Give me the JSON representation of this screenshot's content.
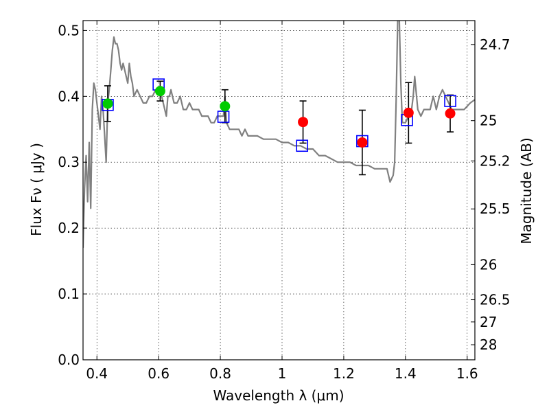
{
  "chart_data": {
    "type": "scatter",
    "xlabel": "Wavelength  λ (μm)",
    "ylabel": "Flux  Fν  ( μJy )",
    "ylabel_right": "Magnitude (AB)",
    "xlim": [
      0.355,
      1.625
    ],
    "ylim": [
      0.0,
      0.515
    ],
    "xticks": [
      0.4,
      0.6,
      0.8,
      1.0,
      1.2,
      1.4,
      1.6
    ],
    "xtick_labels": [
      "0.4",
      "0.6",
      "0.8",
      "1",
      "1.2",
      "1.4",
      "1.6"
    ],
    "yticks": [
      0.0,
      0.1,
      0.2,
      0.3,
      0.4,
      0.5
    ],
    "ytick_labels": [
      "0.0",
      "0.1",
      "0.2",
      "0.3",
      "0.4",
      "0.5"
    ],
    "right_ticks": [
      {
        "label": "24.7",
        "flux": 0.4787
      },
      {
        "label": "25",
        "flux": 0.3631
      },
      {
        "label": "25.2",
        "flux": 0.302
      },
      {
        "label": "25.5",
        "flux": 0.2291
      },
      {
        "label": "26",
        "flux": 0.1445
      },
      {
        "label": "26.5",
        "flux": 0.0912
      },
      {
        "label": "27",
        "flux": 0.0575
      },
      {
        "label": "28",
        "flux": 0.0229
      }
    ],
    "grid": true,
    "colors": {
      "model": "#808080",
      "observed_optical": "#00cc00",
      "observed_ir": "#ff0000",
      "model_photometry": "#0000ff",
      "errorbar": "#000000"
    },
    "series": [
      {
        "name": "model_spectrum",
        "kind": "line",
        "x": [
          0.355,
          0.36,
          0.365,
          0.37,
          0.375,
          0.38,
          0.385,
          0.39,
          0.395,
          0.4,
          0.405,
          0.41,
          0.415,
          0.42,
          0.425,
          0.43,
          0.435,
          0.44,
          0.445,
          0.45,
          0.455,
          0.46,
          0.465,
          0.47,
          0.475,
          0.48,
          0.485,
          0.49,
          0.495,
          0.5,
          0.505,
          0.51,
          0.515,
          0.52,
          0.53,
          0.54,
          0.55,
          0.56,
          0.57,
          0.58,
          0.59,
          0.6,
          0.61,
          0.62,
          0.625,
          0.63,
          0.635,
          0.64,
          0.65,
          0.66,
          0.67,
          0.68,
          0.69,
          0.7,
          0.71,
          0.72,
          0.73,
          0.74,
          0.75,
          0.76,
          0.77,
          0.78,
          0.79,
          0.8,
          0.81,
          0.815,
          0.82,
          0.83,
          0.84,
          0.85,
          0.86,
          0.87,
          0.88,
          0.89,
          0.9,
          0.92,
          0.94,
          0.96,
          0.98,
          1.0,
          1.02,
          1.04,
          1.06,
          1.08,
          1.1,
          1.12,
          1.14,
          1.16,
          1.18,
          1.2,
          1.22,
          1.24,
          1.26,
          1.28,
          1.3,
          1.32,
          1.34,
          1.35,
          1.36,
          1.365,
          1.37,
          1.375,
          1.38,
          1.385,
          1.39,
          1.4,
          1.41,
          1.42,
          1.425,
          1.43,
          1.44,
          1.45,
          1.46,
          1.47,
          1.48,
          1.49,
          1.5,
          1.51,
          1.52,
          1.53,
          1.54,
          1.55,
          1.56,
          1.57,
          1.58,
          1.59,
          1.6,
          1.61,
          1.625
        ],
        "y": [
          0.17,
          0.26,
          0.31,
          0.24,
          0.33,
          0.23,
          0.38,
          0.42,
          0.41,
          0.39,
          0.37,
          0.35,
          0.4,
          0.38,
          0.34,
          0.3,
          0.39,
          0.41,
          0.44,
          0.47,
          0.49,
          0.48,
          0.48,
          0.47,
          0.45,
          0.44,
          0.45,
          0.44,
          0.43,
          0.42,
          0.45,
          0.43,
          0.42,
          0.4,
          0.41,
          0.4,
          0.39,
          0.39,
          0.4,
          0.4,
          0.41,
          0.41,
          0.4,
          0.38,
          0.37,
          0.4,
          0.4,
          0.41,
          0.39,
          0.39,
          0.4,
          0.38,
          0.38,
          0.39,
          0.38,
          0.38,
          0.38,
          0.37,
          0.37,
          0.37,
          0.36,
          0.36,
          0.37,
          0.37,
          0.37,
          0.4,
          0.36,
          0.35,
          0.35,
          0.35,
          0.35,
          0.34,
          0.35,
          0.34,
          0.34,
          0.34,
          0.335,
          0.335,
          0.335,
          0.33,
          0.33,
          0.325,
          0.325,
          0.32,
          0.32,
          0.31,
          0.31,
          0.305,
          0.3,
          0.3,
          0.3,
          0.295,
          0.295,
          0.295,
          0.29,
          0.29,
          0.29,
          0.27,
          0.28,
          0.3,
          0.4,
          0.52,
          0.52,
          0.42,
          0.36,
          0.36,
          0.37,
          0.38,
          0.4,
          0.43,
          0.38,
          0.37,
          0.38,
          0.38,
          0.38,
          0.4,
          0.38,
          0.4,
          0.41,
          0.4,
          0.39,
          0.38,
          0.38,
          0.38,
          0.38,
          0.38,
          0.385,
          0.39,
          0.395
        ]
      },
      {
        "name": "model_photometry",
        "kind": "open_square",
        "x": [
          0.435,
          0.6,
          0.81,
          1.065,
          1.26,
          1.405,
          1.545
        ],
        "y": [
          0.387,
          0.418,
          0.369,
          0.325,
          0.332,
          0.364,
          0.393
        ]
      },
      {
        "name": "observed_optical",
        "kind": "circle",
        "x": [
          0.435,
          0.605,
          0.815
        ],
        "y": [
          0.389,
          0.408,
          0.385
        ],
        "yerr": [
          0.027,
          0.015,
          0.025
        ]
      },
      {
        "name": "observed_ir",
        "kind": "circle",
        "x": [
          1.068,
          1.26,
          1.41,
          1.545
        ],
        "y": [
          0.361,
          0.33,
          0.375,
          0.374
        ],
        "yerr": [
          0.032,
          0.049,
          0.046,
          0.028
        ]
      }
    ]
  }
}
